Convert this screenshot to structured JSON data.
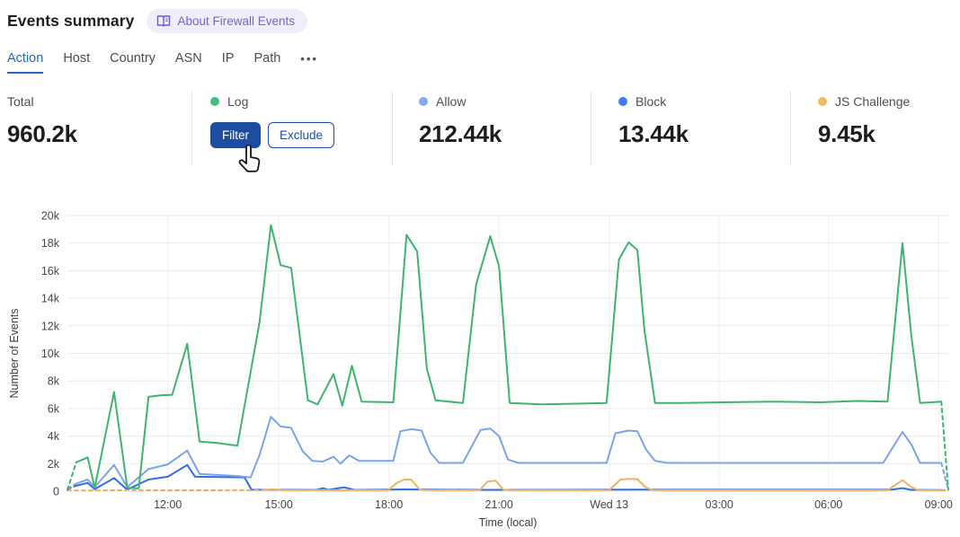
{
  "header": {
    "title": "Events summary",
    "about_badge": "About Firewall Events"
  },
  "tabs": {
    "items": [
      {
        "label": "Action",
        "active": true
      },
      {
        "label": "Host",
        "active": false
      },
      {
        "label": "Country",
        "active": false
      },
      {
        "label": "ASN",
        "active": false
      },
      {
        "label": "IP",
        "active": false
      },
      {
        "label": "Path",
        "active": false
      }
    ],
    "overflow_label": "•••"
  },
  "stats": {
    "total": {
      "label": "Total",
      "value": "960.2k"
    },
    "hovered": {
      "label": "Log",
      "color": "#3ec27b",
      "filter_label": "Filter",
      "exclude_label": "Exclude"
    },
    "items": [
      {
        "label": "Allow",
        "value": "212.44k",
        "color": "#82abf5"
      },
      {
        "label": "Block",
        "value": "13.44k",
        "color": "#3b7df0"
      },
      {
        "label": "JS Challenge",
        "value": "9.45k",
        "color": "#f3ba66"
      }
    ]
  },
  "chart_data": {
    "type": "line",
    "xlabel": "Time (local)",
    "ylabel": "Number of Events",
    "y_max": 20000,
    "y_tick_labels": [
      "0",
      "2k",
      "4k",
      "6k",
      "8k",
      "10k",
      "12k",
      "14k",
      "16k",
      "18k",
      "20k"
    ],
    "x_ticks": [
      {
        "pos": 0.114,
        "label": "12:00"
      },
      {
        "pos": 0.24,
        "label": "15:00"
      },
      {
        "pos": 0.365,
        "label": "18:00"
      },
      {
        "pos": 0.49,
        "label": "21:00"
      },
      {
        "pos": 0.615,
        "label": "Wed 13"
      },
      {
        "pos": 0.74,
        "label": "03:00"
      },
      {
        "pos": 0.864,
        "label": "06:00"
      },
      {
        "pos": 0.989,
        "label": "09:00"
      }
    ],
    "note": "x positions are fractions of the 24h window (~09:15 to ~09:15 next day); first and last segments are dashed (partial intervals)",
    "series": [
      {
        "name": "Block",
        "color": "#306fe3",
        "points": [
          [
            0.0,
            150
          ],
          [
            0.01,
            400
          ],
          [
            0.023,
            600
          ],
          [
            0.031,
            150
          ],
          [
            0.053,
            950
          ],
          [
            0.068,
            120
          ],
          [
            0.092,
            850
          ],
          [
            0.114,
            1050
          ],
          [
            0.136,
            1900
          ],
          [
            0.145,
            1050
          ],
          [
            0.201,
            1000
          ],
          [
            0.209,
            120
          ],
          [
            0.283,
            100
          ],
          [
            0.29,
            220
          ],
          [
            0.296,
            100
          ],
          [
            0.314,
            280
          ],
          [
            0.326,
            100
          ],
          [
            0.385,
            130
          ],
          [
            0.477,
            100
          ],
          [
            0.64,
            110
          ],
          [
            0.936,
            120
          ],
          [
            0.948,
            220
          ],
          [
            0.958,
            100
          ],
          [
            0.992,
            80
          ],
          [
            1.0,
            30
          ]
        ]
      },
      {
        "name": "JS Challenge",
        "color": "#f0b25f",
        "points": [
          [
            0.0,
            60
          ],
          [
            0.221,
            70
          ],
          [
            0.232,
            150
          ],
          [
            0.244,
            70
          ],
          [
            0.364,
            70
          ],
          [
            0.374,
            600
          ],
          [
            0.382,
            850
          ],
          [
            0.39,
            850
          ],
          [
            0.4,
            120
          ],
          [
            0.407,
            70
          ],
          [
            0.468,
            70
          ],
          [
            0.477,
            700
          ],
          [
            0.486,
            760
          ],
          [
            0.495,
            120
          ],
          [
            0.503,
            70
          ],
          [
            0.615,
            70
          ],
          [
            0.628,
            850
          ],
          [
            0.637,
            900
          ],
          [
            0.647,
            880
          ],
          [
            0.656,
            300
          ],
          [
            0.664,
            70
          ],
          [
            0.931,
            70
          ],
          [
            0.948,
            800
          ],
          [
            0.958,
            300
          ],
          [
            0.966,
            70
          ],
          [
            0.992,
            60
          ],
          [
            1.0,
            20
          ]
        ]
      },
      {
        "name": "Allow",
        "color": "#7aa4ee",
        "points": [
          [
            0.0,
            200
          ],
          [
            0.01,
            550
          ],
          [
            0.023,
            850
          ],
          [
            0.031,
            300
          ],
          [
            0.053,
            1900
          ],
          [
            0.068,
            300
          ],
          [
            0.092,
            1600
          ],
          [
            0.114,
            1950
          ],
          [
            0.136,
            2950
          ],
          [
            0.15,
            1250
          ],
          [
            0.193,
            1100
          ],
          [
            0.208,
            1000
          ],
          [
            0.218,
            2600
          ],
          [
            0.231,
            5400
          ],
          [
            0.242,
            4700
          ],
          [
            0.254,
            4600
          ],
          [
            0.267,
            2900
          ],
          [
            0.278,
            2200
          ],
          [
            0.29,
            2150
          ],
          [
            0.302,
            2500
          ],
          [
            0.31,
            2000
          ],
          [
            0.32,
            2600
          ],
          [
            0.331,
            2200
          ],
          [
            0.37,
            2200
          ],
          [
            0.378,
            4350
          ],
          [
            0.391,
            4500
          ],
          [
            0.402,
            4400
          ],
          [
            0.412,
            2800
          ],
          [
            0.422,
            2050
          ],
          [
            0.449,
            2050
          ],
          [
            0.469,
            4450
          ],
          [
            0.48,
            4550
          ],
          [
            0.49,
            4000
          ],
          [
            0.5,
            2300
          ],
          [
            0.512,
            2050
          ],
          [
            0.612,
            2050
          ],
          [
            0.622,
            4200
          ],
          [
            0.637,
            4400
          ],
          [
            0.647,
            4350
          ],
          [
            0.657,
            3000
          ],
          [
            0.667,
            2200
          ],
          [
            0.681,
            2050
          ],
          [
            0.926,
            2050
          ],
          [
            0.948,
            4300
          ],
          [
            0.958,
            3400
          ],
          [
            0.968,
            2050
          ],
          [
            0.992,
            2050
          ],
          [
            1.0,
            100
          ]
        ]
      },
      {
        "name": "Log",
        "color": "#3fb46e",
        "points": [
          [
            0.0,
            100
          ],
          [
            0.01,
            2100
          ],
          [
            0.023,
            2450
          ],
          [
            0.031,
            250
          ],
          [
            0.053,
            7200
          ],
          [
            0.068,
            250
          ],
          [
            0.081,
            200
          ],
          [
            0.092,
            6850
          ],
          [
            0.106,
            6950
          ],
          [
            0.119,
            7000
          ],
          [
            0.136,
            10700
          ],
          [
            0.15,
            3600
          ],
          [
            0.17,
            3500
          ],
          [
            0.193,
            3300
          ],
          [
            0.218,
            12200
          ],
          [
            0.231,
            19300
          ],
          [
            0.242,
            16400
          ],
          [
            0.254,
            16200
          ],
          [
            0.273,
            6600
          ],
          [
            0.284,
            6300
          ],
          [
            0.302,
            8500
          ],
          [
            0.312,
            6200
          ],
          [
            0.323,
            9100
          ],
          [
            0.334,
            6500
          ],
          [
            0.37,
            6450
          ],
          [
            0.385,
            18600
          ],
          [
            0.397,
            17400
          ],
          [
            0.408,
            8900
          ],
          [
            0.418,
            6600
          ],
          [
            0.449,
            6400
          ],
          [
            0.464,
            15000
          ],
          [
            0.48,
            18500
          ],
          [
            0.49,
            16300
          ],
          [
            0.502,
            6400
          ],
          [
            0.538,
            6300
          ],
          [
            0.579,
            6350
          ],
          [
            0.612,
            6400
          ],
          [
            0.626,
            16800
          ],
          [
            0.637,
            18050
          ],
          [
            0.647,
            17500
          ],
          [
            0.655,
            11700
          ],
          [
            0.667,
            6400
          ],
          [
            0.701,
            6400
          ],
          [
            0.742,
            6450
          ],
          [
            0.803,
            6500
          ],
          [
            0.854,
            6450
          ],
          [
            0.897,
            6550
          ],
          [
            0.931,
            6500
          ],
          [
            0.948,
            18000
          ],
          [
            0.958,
            11300
          ],
          [
            0.968,
            6400
          ],
          [
            0.992,
            6500
          ],
          [
            1.0,
            100
          ]
        ]
      }
    ]
  }
}
